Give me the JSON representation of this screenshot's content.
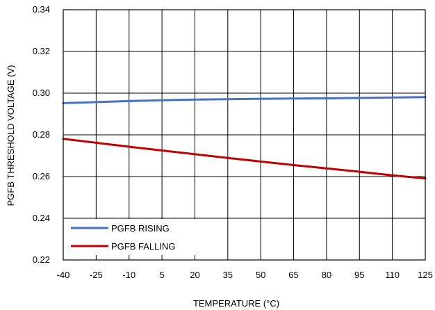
{
  "chart_data": {
    "type": "line",
    "title": "",
    "xlabel": "TEMPERATURE (°C)",
    "ylabel": "PGFB THRESHOLD  VOLTAGE (V)",
    "xlim": [
      -40,
      125
    ],
    "ylim": [
      0.22,
      0.34
    ],
    "x_ticks": [
      -40,
      -25,
      -10,
      5,
      20,
      35,
      50,
      65,
      80,
      95,
      110,
      125
    ],
    "y_ticks": [
      "0.22",
      "0.24",
      "0.26",
      "0.28",
      "0.30",
      "0.32",
      "0.34"
    ],
    "grid": true,
    "legend_position": "bottom-left",
    "series": [
      {
        "name": "PGFB RISING",
        "color": "#4472C4",
        "x": [
          -40,
          -25,
          -10,
          5,
          20,
          35,
          50,
          65,
          80,
          95,
          110,
          125
        ],
        "y": [
          0.2952,
          0.2957,
          0.2962,
          0.2966,
          0.2969,
          0.2971,
          0.2973,
          0.2974,
          0.2975,
          0.2977,
          0.2979,
          0.2981
        ]
      },
      {
        "name": "PGFB FALLING",
        "color": "#C00000",
        "x": [
          -40,
          -25,
          -10,
          5,
          20,
          35,
          50,
          65,
          80,
          95,
          110,
          125
        ],
        "y": [
          0.2781,
          0.2762,
          0.2743,
          0.2725,
          0.2707,
          0.2689,
          0.2672,
          0.2655,
          0.2639,
          0.2623,
          0.2606,
          0.2591
        ]
      }
    ]
  }
}
